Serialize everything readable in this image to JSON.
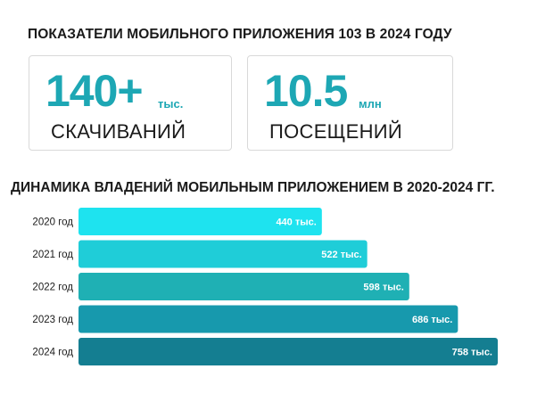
{
  "header": {
    "title": "ПОКАЗАТЕЛИ МОБИЛЬНОГО ПРИЛОЖЕНИЯ 103 В 2024 ГОДУ"
  },
  "stats": [
    {
      "value": "140+",
      "unit": "тыс.",
      "label": "СКАЧИВАНИЙ"
    },
    {
      "value": "10.5",
      "unit": "млн",
      "label": "ПОСЕЩЕНИЙ"
    }
  ],
  "colors": {
    "accent": "#1da7b4",
    "bars": [
      "#1ee3ef",
      "#1fcdd8",
      "#1fb0b4",
      "#1799ad",
      "#147e91"
    ]
  },
  "chart_data": {
    "type": "bar",
    "orientation": "horizontal",
    "title": "ДИНАМИКА ВЛАДЕНИЙ МОБИЛЬНЫМ ПРИЛОЖЕНИЕМ В 2020-2024 ГГ.",
    "categories": [
      "2020 год",
      "2021 год",
      "2022 год",
      "2023 год",
      "2024 год"
    ],
    "values": [
      440,
      522,
      598,
      686,
      758
    ],
    "value_labels": [
      "440 тыс.",
      "522 тыс.",
      "598 тыс.",
      "686 тыс.",
      "758 тыс."
    ],
    "grid": false,
    "legend": "none"
  }
}
